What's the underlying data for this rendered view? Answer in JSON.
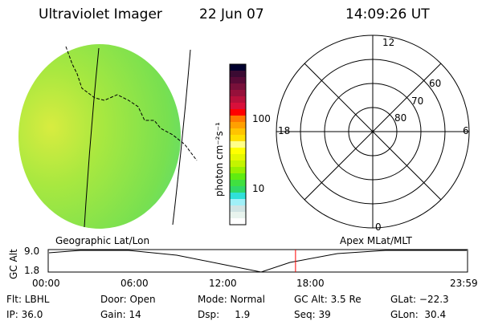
{
  "header": {
    "title": "Ultraviolet Imager",
    "date": "22 Jun 07",
    "time": "14:09:26 UT"
  },
  "colorbar": {
    "unit_label": "photon cm⁻²s⁻¹",
    "ticks": [
      "100",
      "10"
    ],
    "colors": [
      "#00002e",
      "#3a0a32",
      "#580a36",
      "#78103a",
      "#96103a",
      "#b8103a",
      "#d8103a",
      "#ff0000",
      "#ff7800",
      "#ffa000",
      "#ffc400",
      "#ffe000",
      "#ffff88",
      "#ffff00",
      "#e4f800",
      "#c4f400",
      "#98f000",
      "#60ec10",
      "#40e040",
      "#30d868",
      "#30e0d8",
      "#a0f0f8",
      "#d0e4e4",
      "#e8f4ee",
      "#ffffff"
    ]
  },
  "polar": {
    "mlt_labels": {
      "top": "12",
      "bottom": "0",
      "left": "18",
      "right": "6"
    },
    "mlat_labels": [
      "60",
      "70",
      "80"
    ]
  },
  "timeline": {
    "left_title": "Geographic Lat/Lon",
    "right_title": "Apex MLat/MLT",
    "ylabel": "GC Alt",
    "yticks": [
      "9.0",
      "1.8"
    ],
    "xticks": [
      "00:00",
      "06:00",
      "12:00",
      "18:00",
      "23:59"
    ],
    "current_time_fraction": 0.5898,
    "marker_color": "#ff0000"
  },
  "status": {
    "flt": "Flt: LBHL",
    "ip": "IP: 36.0",
    "door": "Door: Open",
    "gain": "Gain: 14",
    "mode": "Mode: Normal",
    "dsp": "Dsp:     1.9",
    "gcalt": "GC Alt: 3.5 Re",
    "seq": "Seq: 39",
    "glat": "GLat: −22.3",
    "glon": "GLon:  30.4"
  }
}
